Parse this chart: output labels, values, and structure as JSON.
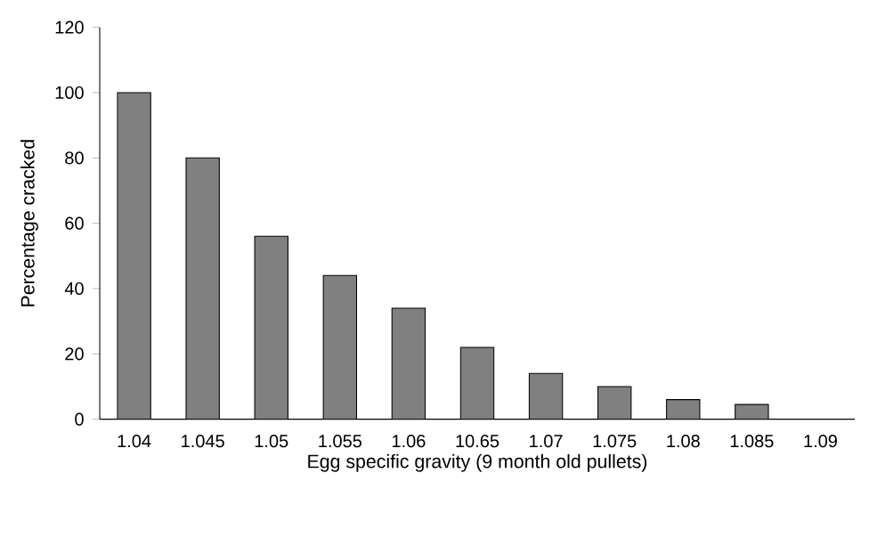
{
  "chart_data": {
    "type": "bar",
    "xlabel": "Egg specific gravity (9 month old pullets)",
    "ylabel": "Percentage cracked",
    "categories": [
      "1.04",
      "1.045",
      "1.05",
      "1.055",
      "1.06",
      "10.65",
      "1.07",
      "1.075",
      "1.08",
      "1.085",
      "1.09"
    ],
    "values": [
      100,
      80,
      56,
      44,
      34,
      22,
      14,
      10,
      6,
      4.5,
      null
    ],
    "color": "#808080",
    "ylim": [
      0,
      120
    ],
    "yticks": [
      0,
      20,
      40,
      60,
      80,
      100,
      120
    ]
  }
}
